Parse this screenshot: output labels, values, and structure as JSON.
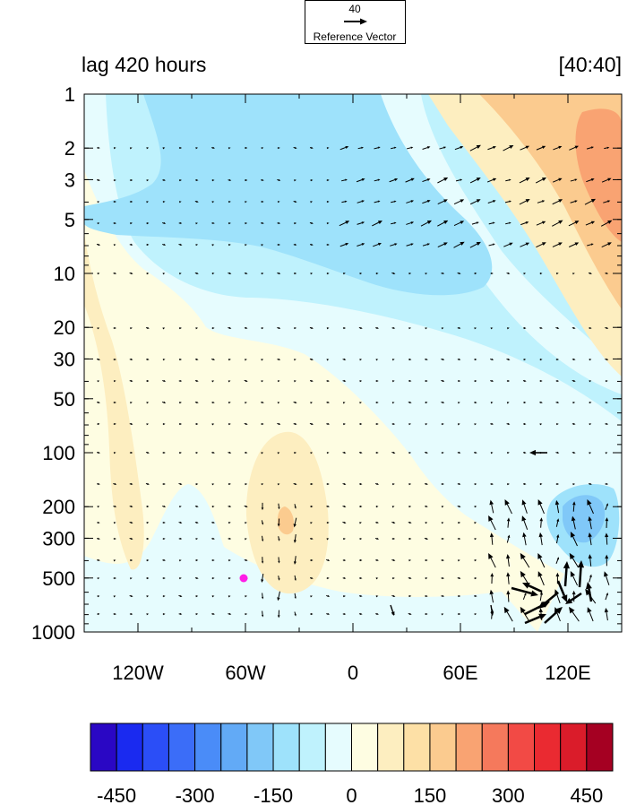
{
  "chart_data": {
    "type": "heatmap",
    "title_left": "lag 420 hours",
    "title_right": "[40:40]",
    "x_tick_labels": [
      "120W",
      "60W",
      "0",
      "60E",
      "120E"
    ],
    "x_tick_values": [
      -120,
      -60,
      0,
      60,
      120
    ],
    "x_range": [
      -150,
      150
    ],
    "y_scale": "log",
    "y_reversed": true,
    "y_range": [
      1,
      1000
    ],
    "y_tick_labels": [
      "1",
      "2",
      "3",
      "5",
      "10",
      "20",
      "30",
      "50",
      "100",
      "200",
      "300",
      "500",
      "1000"
    ],
    "y_tick_values": [
      1,
      2,
      3,
      5,
      10,
      20,
      30,
      50,
      100,
      200,
      300,
      500,
      1000
    ],
    "colorbar": {
      "levels": [
        -500,
        -450,
        -400,
        -350,
        -300,
        -250,
        -200,
        -150,
        -100,
        -50,
        0,
        50,
        100,
        150,
        200,
        250,
        300,
        350,
        400,
        450,
        500
      ],
      "tick_labels": [
        "-450",
        "-300",
        "-150",
        "0",
        "150",
        "300",
        "450"
      ],
      "tick_values": [
        -450,
        -300,
        -150,
        0,
        150,
        300,
        450
      ],
      "colors": [
        "#2a07c4",
        "#1a2af0",
        "#2b4ef7",
        "#3b6df8",
        "#4a8cf8",
        "#62aaf6",
        "#80c8f8",
        "#9ee2fb",
        "#bff2fd",
        "#e6fcfe",
        "#fefde2",
        "#fdeec0",
        "#fde0a6",
        "#fbcb8f",
        "#f9a372",
        "#f5795c",
        "#f24a45",
        "#ea2a31",
        "#da1c2a",
        "#a50022"
      ]
    },
    "reference_vector": {
      "value": "40",
      "label": "Reference Vector"
    },
    "marker": {
      "lon": -60,
      "pressure": 500,
      "color": "#ff1ee6"
    }
  }
}
